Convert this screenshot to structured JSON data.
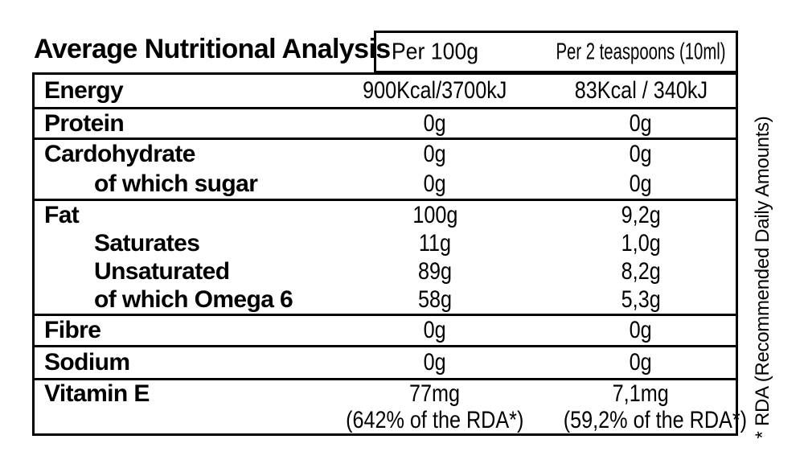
{
  "title": "Average Nutritional Analysis",
  "columns": {
    "per100g": "Per 100g",
    "per2tsp": "Per 2 teaspoons (10ml)"
  },
  "footnote": "* RDA (Recommended Daily Amounts)",
  "colors": {
    "text": "#000000",
    "background": "#ffffff",
    "border": "#000000"
  },
  "rows": [
    {
      "name": "energy",
      "lines": [
        {
          "label": "Energy",
          "per100g": "900Kcal/3700kJ",
          "per10ml": "83Kcal / 340kJ"
        }
      ]
    },
    {
      "name": "protein",
      "lines": [
        {
          "label": "Protein",
          "per100g": "0g",
          "per10ml": "0g"
        }
      ]
    },
    {
      "name": "carbohydrate",
      "lines": [
        {
          "label": "Cardohydrate",
          "per100g": "0g",
          "per10ml": "0g"
        },
        {
          "label": "of which sugar",
          "per100g": "0g",
          "per10ml": "0g"
        }
      ]
    },
    {
      "name": "fat",
      "lines": [
        {
          "label": "Fat",
          "per100g": "100g",
          "per10ml": "9,2g"
        },
        {
          "label": "Saturates",
          "per100g": "11g",
          "per10ml": "1,0g"
        },
        {
          "label": "Unsaturated",
          "per100g": "89g",
          "per10ml": "8,2g"
        },
        {
          "label": "of which Omega 6",
          "per100g": "58g",
          "per10ml": "5,3g"
        }
      ]
    },
    {
      "name": "fibre",
      "lines": [
        {
          "label": "Fibre",
          "per100g": "0g",
          "per10ml": "0g"
        }
      ]
    },
    {
      "name": "sodium",
      "lines": [
        {
          "label": "Sodium",
          "per100g": "0g",
          "per10ml": "0g"
        }
      ]
    },
    {
      "name": "vitamin-e",
      "lines": [
        {
          "label": "Vitamin E",
          "per100g": "77mg",
          "per10ml": "7,1mg"
        },
        {
          "label": "",
          "per100g": "(642% of the RDA*)",
          "per10ml": "(59,2% of the RDA*)"
        }
      ]
    }
  ]
}
